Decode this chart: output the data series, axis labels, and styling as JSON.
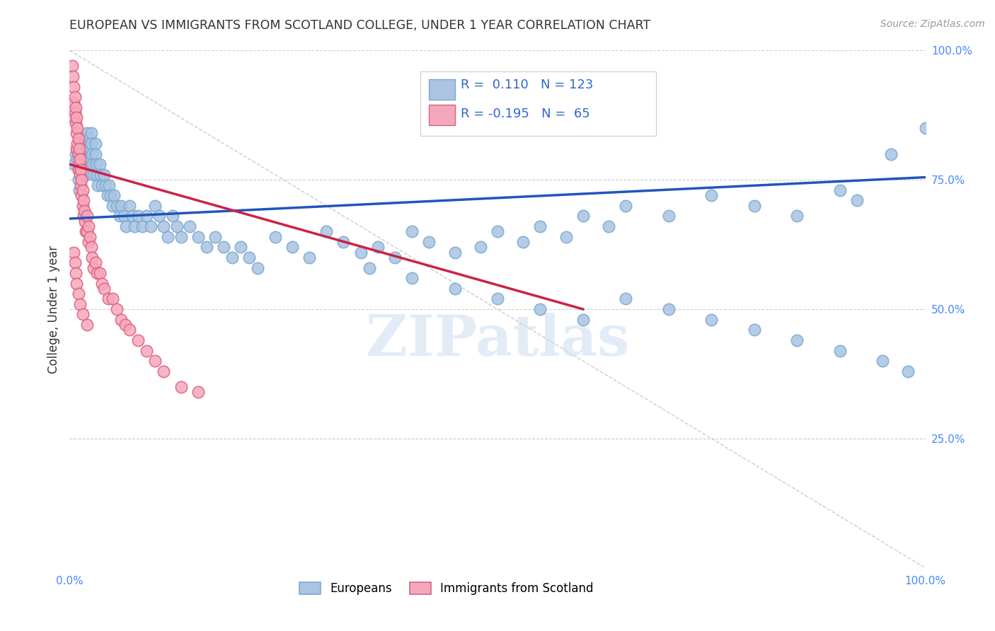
{
  "title": "EUROPEAN VS IMMIGRANTS FROM SCOTLAND COLLEGE, UNDER 1 YEAR CORRELATION CHART",
  "source": "Source: ZipAtlas.com",
  "ylabel": "College, Under 1 year",
  "legend_labels": [
    "Europeans",
    "Immigrants from Scotland"
  ],
  "blue_R": "0.110",
  "blue_N": "123",
  "pink_R": "-0.195",
  "pink_N": "65",
  "blue_color": "#aac4e2",
  "pink_color": "#f5a8bc",
  "blue_edge": "#7aaad0",
  "pink_edge": "#e06080",
  "trend_blue": "#2255bb",
  "trend_pink": "#cc2244",
  "diag_color": "#cccccc",
  "background": "#ffffff",
  "title_color": "#333333",
  "right_tick_color": "#4488ff",
  "watermark_color": "#ccddf0",
  "xlim": [
    0.0,
    1.0
  ],
  "ylim": [
    0.0,
    1.0
  ],
  "blue_trend_x": [
    0.0,
    1.0
  ],
  "blue_trend_y": [
    0.675,
    0.755
  ],
  "pink_trend_x": [
    0.0,
    0.6
  ],
  "pink_trend_y": [
    0.78,
    0.5
  ],
  "blue_x": [
    0.005,
    0.007,
    0.009,
    0.01,
    0.01,
    0.011,
    0.012,
    0.013,
    0.014,
    0.015,
    0.015,
    0.016,
    0.017,
    0.018,
    0.018,
    0.019,
    0.02,
    0.02,
    0.02,
    0.021,
    0.022,
    0.022,
    0.023,
    0.024,
    0.025,
    0.025,
    0.026,
    0.027,
    0.028,
    0.03,
    0.03,
    0.031,
    0.032,
    0.033,
    0.035,
    0.036,
    0.038,
    0.04,
    0.042,
    0.044,
    0.046,
    0.048,
    0.05,
    0.052,
    0.055,
    0.058,
    0.06,
    0.063,
    0.066,
    0.07,
    0.073,
    0.076,
    0.08,
    0.085,
    0.09,
    0.095,
    0.1,
    0.105,
    0.11,
    0.115,
    0.12,
    0.125,
    0.13,
    0.14,
    0.15,
    0.16,
    0.17,
    0.18,
    0.19,
    0.2,
    0.21,
    0.22,
    0.24,
    0.26,
    0.28,
    0.3,
    0.32,
    0.34,
    0.36,
    0.38,
    0.4,
    0.42,
    0.45,
    0.48,
    0.5,
    0.53,
    0.55,
    0.58,
    0.6,
    0.63,
    0.65,
    0.7,
    0.75,
    0.8,
    0.85,
    0.9,
    0.92,
    0.96,
    1.0,
    0.35,
    0.4,
    0.45,
    0.5,
    0.55,
    0.6,
    0.65,
    0.7,
    0.75,
    0.8,
    0.85,
    0.9,
    0.95,
    0.98
  ],
  "blue_y": [
    0.78,
    0.8,
    0.79,
    0.77,
    0.75,
    0.73,
    0.82,
    0.8,
    0.78,
    0.83,
    0.81,
    0.79,
    0.82,
    0.8,
    0.78,
    0.76,
    0.84,
    0.82,
    0.8,
    0.78,
    0.81,
    0.79,
    0.83,
    0.81,
    0.84,
    0.82,
    0.8,
    0.78,
    0.76,
    0.82,
    0.8,
    0.78,
    0.76,
    0.74,
    0.78,
    0.76,
    0.74,
    0.76,
    0.74,
    0.72,
    0.74,
    0.72,
    0.7,
    0.72,
    0.7,
    0.68,
    0.7,
    0.68,
    0.66,
    0.7,
    0.68,
    0.66,
    0.68,
    0.66,
    0.68,
    0.66,
    0.7,
    0.68,
    0.66,
    0.64,
    0.68,
    0.66,
    0.64,
    0.66,
    0.64,
    0.62,
    0.64,
    0.62,
    0.6,
    0.62,
    0.6,
    0.58,
    0.64,
    0.62,
    0.6,
    0.65,
    0.63,
    0.61,
    0.62,
    0.6,
    0.65,
    0.63,
    0.61,
    0.62,
    0.65,
    0.63,
    0.66,
    0.64,
    0.68,
    0.66,
    0.7,
    0.68,
    0.72,
    0.7,
    0.68,
    0.73,
    0.71,
    0.8,
    0.85,
    0.58,
    0.56,
    0.54,
    0.52,
    0.5,
    0.48,
    0.52,
    0.5,
    0.48,
    0.46,
    0.44,
    0.42,
    0.4,
    0.38
  ],
  "pink_x": [
    0.003,
    0.004,
    0.005,
    0.005,
    0.005,
    0.006,
    0.006,
    0.007,
    0.007,
    0.008,
    0.008,
    0.008,
    0.009,
    0.009,
    0.01,
    0.01,
    0.01,
    0.011,
    0.011,
    0.012,
    0.012,
    0.013,
    0.013,
    0.014,
    0.014,
    0.015,
    0.015,
    0.016,
    0.016,
    0.017,
    0.018,
    0.019,
    0.02,
    0.02,
    0.022,
    0.022,
    0.024,
    0.025,
    0.026,
    0.028,
    0.03,
    0.032,
    0.035,
    0.038,
    0.04,
    0.045,
    0.05,
    0.055,
    0.06,
    0.065,
    0.07,
    0.08,
    0.09,
    0.1,
    0.11,
    0.13,
    0.15,
    0.005,
    0.006,
    0.007,
    0.008,
    0.01,
    0.012,
    0.015,
    0.02
  ],
  "pink_y": [
    0.97,
    0.95,
    0.93,
    0.9,
    0.87,
    0.91,
    0.88,
    0.89,
    0.86,
    0.87,
    0.84,
    0.81,
    0.85,
    0.82,
    0.83,
    0.8,
    0.77,
    0.81,
    0.78,
    0.79,
    0.76,
    0.77,
    0.74,
    0.75,
    0.72,
    0.73,
    0.7,
    0.71,
    0.68,
    0.69,
    0.67,
    0.65,
    0.68,
    0.65,
    0.66,
    0.63,
    0.64,
    0.62,
    0.6,
    0.58,
    0.59,
    0.57,
    0.57,
    0.55,
    0.54,
    0.52,
    0.52,
    0.5,
    0.48,
    0.47,
    0.46,
    0.44,
    0.42,
    0.4,
    0.38,
    0.35,
    0.34,
    0.61,
    0.59,
    0.57,
    0.55,
    0.53,
    0.51,
    0.49,
    0.47
  ]
}
